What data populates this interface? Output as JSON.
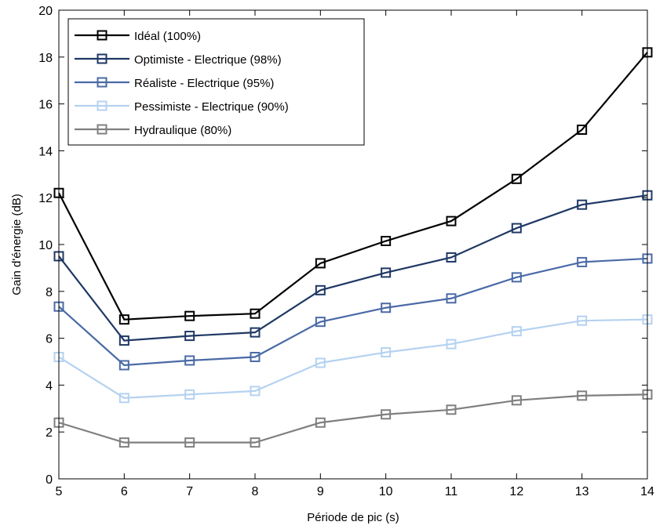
{
  "chart_data": {
    "type": "line",
    "title": "",
    "xlabel": "Période de pic (s)",
    "ylabel": "Gain d'énergie (dB)",
    "x": [
      5,
      6,
      7,
      8,
      9,
      10,
      11,
      12,
      13,
      14
    ],
    "xlim": [
      5,
      14
    ],
    "ylim": [
      0,
      20
    ],
    "xticks": [
      5,
      6,
      7,
      8,
      9,
      10,
      11,
      12,
      13,
      14
    ],
    "yticks": [
      0,
      2,
      4,
      6,
      8,
      10,
      12,
      14,
      16,
      18,
      20
    ],
    "grid": false,
    "legend_position": "top-left",
    "marker": "square",
    "series": [
      {
        "name": "Idéal (100%)",
        "color": "#000000",
        "values": [
          12.2,
          6.8,
          6.95,
          7.05,
          9.2,
          10.15,
          11.0,
          12.8,
          14.9,
          18.2
        ]
      },
      {
        "name": "Optimiste - Electrique (98%)",
        "color": "#1f3864",
        "values": [
          9.5,
          5.9,
          6.1,
          6.25,
          8.05,
          8.8,
          9.45,
          10.7,
          11.7,
          12.1
        ]
      },
      {
        "name": "Réaliste - Electrique (95%)",
        "color": "#4a6aa6",
        "values": [
          7.35,
          4.85,
          5.05,
          5.2,
          6.7,
          7.3,
          7.7,
          8.6,
          9.25,
          9.4
        ]
      },
      {
        "name": "Pessimiste - Electrique (90%)",
        "color": "#b5d2f0",
        "values": [
          5.2,
          3.45,
          3.6,
          3.75,
          4.95,
          5.4,
          5.75,
          6.3,
          6.75,
          6.8
        ]
      },
      {
        "name": "Hydraulique (80%)",
        "color": "#7f7f7f",
        "values": [
          2.4,
          1.55,
          1.55,
          1.55,
          2.4,
          2.75,
          2.95,
          3.35,
          3.55,
          3.6
        ]
      }
    ]
  }
}
